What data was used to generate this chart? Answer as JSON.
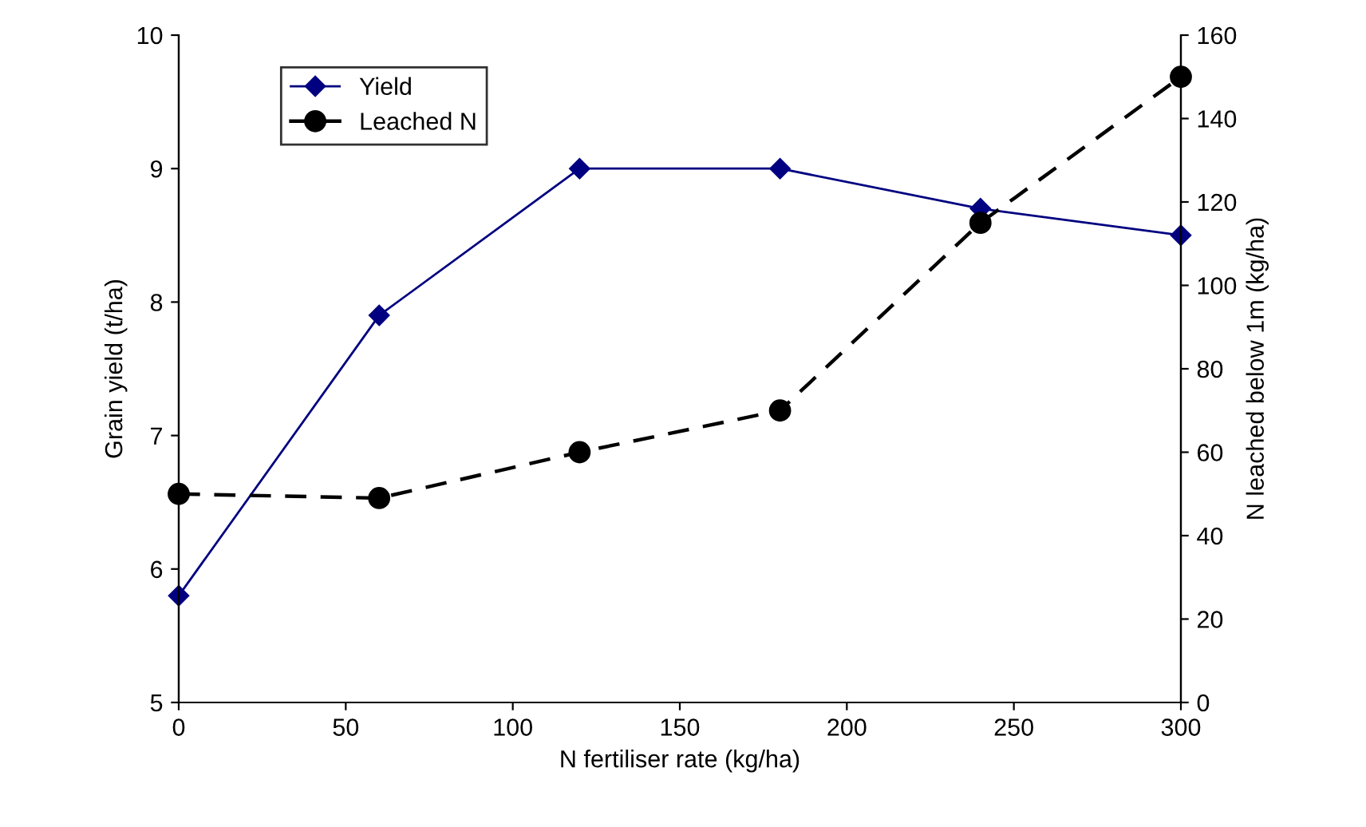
{
  "chart_data": {
    "type": "line",
    "xlabel": "N fertiliser rate (kg/ha)",
    "ylabel": "Grain yield (t/ha)",
    "y2label": "N leached below 1m (kg/ha)",
    "x": [
      0,
      60,
      120,
      180,
      240,
      300
    ],
    "series": [
      {
        "name": "Yield",
        "color": "#000080",
        "values": [
          5.8,
          7.9,
          9.0,
          9.0,
          8.7,
          8.5
        ],
        "marker": "diamond",
        "line_style": "solid"
      },
      {
        "name": "Leached N",
        "color": "#000000",
        "values": [
          50,
          49,
          60,
          70,
          115,
          150
        ],
        "marker": "circle",
        "line_style": "dashed",
        "axis": "y2"
      }
    ],
    "xlim": [
      0,
      300
    ],
    "xticks": [
      0,
      50,
      100,
      150,
      200,
      250,
      300
    ],
    "ylim": [
      5,
      10
    ],
    "yticks": [
      5,
      6,
      7,
      8,
      9,
      10
    ],
    "y2lim": [
      0,
      160
    ],
    "y2ticks": [
      0,
      20,
      40,
      60,
      80,
      100,
      120,
      140,
      160
    ],
    "grid": false,
    "legend": "top left"
  }
}
